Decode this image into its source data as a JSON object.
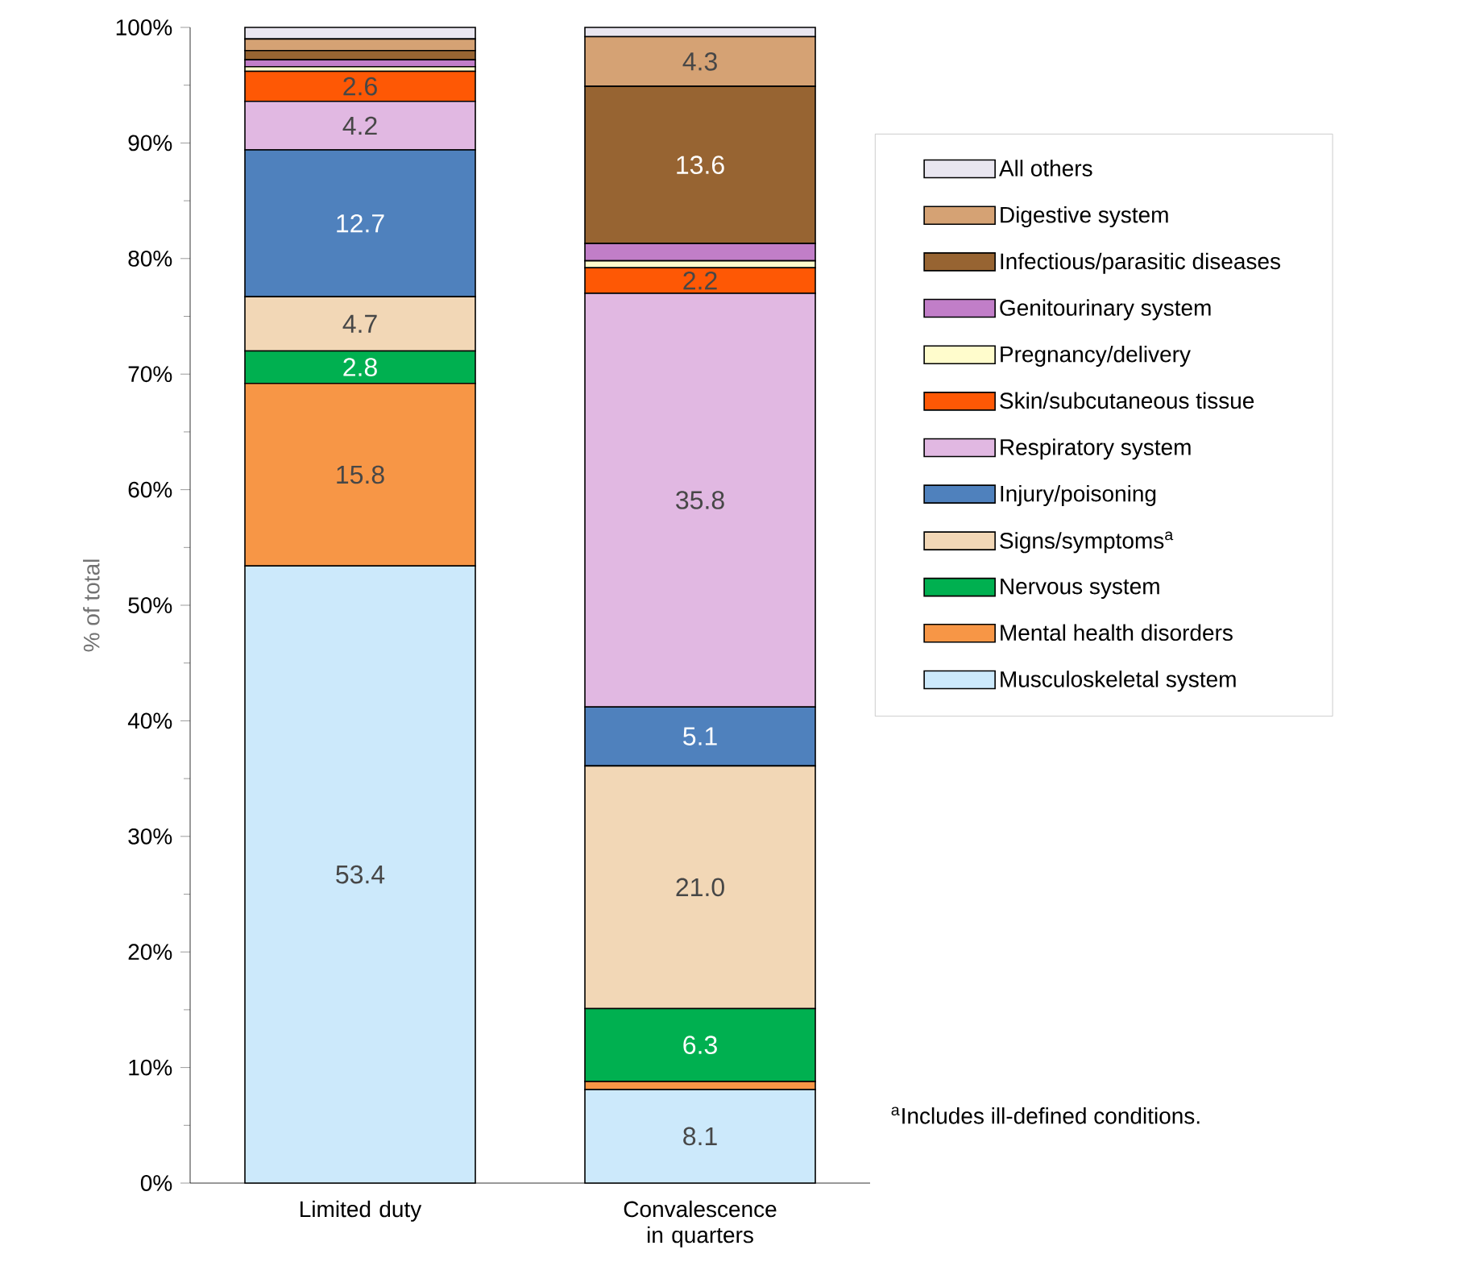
{
  "chart_data": {
    "type": "bar",
    "stacked": true,
    "ylabel": "% of total",
    "legend": "right",
    "categories": [
      "Limited duty",
      "Convalescence in quarters"
    ],
    "ylim": [
      0,
      100
    ],
    "yticks": [
      {
        "value": 0,
        "label": "0%"
      },
      {
        "value": 10,
        "label": "10%"
      },
      {
        "value": 20,
        "label": "20%"
      },
      {
        "value": 30,
        "label": "30%"
      },
      {
        "value": 40,
        "label": "40%"
      },
      {
        "value": 50,
        "label": "50%"
      },
      {
        "value": 60,
        "label": "60%"
      },
      {
        "value": 70,
        "label": "70%"
      },
      {
        "value": 80,
        "label": "80%"
      },
      {
        "value": 90,
        "label": "90%"
      },
      {
        "value": 100,
        "label": "100%"
      }
    ],
    "series": [
      {
        "name": "Musculoskeletal system",
        "color": "#cce9fb",
        "values": [
          53.4,
          8.1
        ],
        "value_labels": [
          "53.4",
          "8.1"
        ]
      },
      {
        "name": "Mental health disorders",
        "color": "#f79646",
        "values": [
          15.8,
          0.7
        ],
        "value_labels": [
          "15.8",
          null
        ]
      },
      {
        "name": "Nervous system",
        "color": "#00b050",
        "values": [
          2.8,
          6.3
        ],
        "value_labels": [
          "2.8",
          "6.3"
        ]
      },
      {
        "name": "Signs/symptoms$^{a}$",
        "color": "#f2d7b6",
        "values": [
          4.7,
          21.0
        ],
        "value_labels": [
          "4.7",
          "21.0"
        ]
      },
      {
        "name": "Injury/poisoning",
        "color": "#4f81bd",
        "values": [
          12.7,
          5.1
        ],
        "value_labels": [
          "12.7",
          "5.1"
        ]
      },
      {
        "name": "Respiratory system",
        "color": "#e1b8e2",
        "values": [
          4.2,
          35.8
        ],
        "value_labels": [
          "4.2",
          "35.8"
        ]
      },
      {
        "name": "Skin/subcutaneous tissue",
        "color": "#fe5805",
        "values": [
          2.6,
          2.2
        ],
        "value_labels": [
          "2.6",
          "2.2"
        ]
      },
      {
        "name": "Pregnancy/delivery",
        "color": "#fffccc",
        "values": [
          0.4,
          0.6
        ],
        "value_labels": [
          null,
          null
        ]
      },
      {
        "name": "Genitourinary system",
        "color": "#c17ec8",
        "values": [
          0.6,
          1.5
        ],
        "value_labels": [
          null,
          null
        ]
      },
      {
        "name": "Infectious/parasitic diseases",
        "color": "#976432",
        "values": [
          0.8,
          13.6
        ],
        "value_labels": [
          null,
          "13.6"
        ]
      },
      {
        "name": "Digestive system",
        "color": "#d5a274",
        "values": [
          1.0,
          4.3
        ],
        "value_labels": [
          null,
          "4.3"
        ]
      },
      {
        "name": "All others",
        "color": "#e9e6f0",
        "values": [
          1.0,
          0.8
        ],
        "value_labels": [
          null,
          null
        ]
      }
    ],
    "annotations": [
      "$^{a}$Includes ill-defined conditions."
    ]
  }
}
